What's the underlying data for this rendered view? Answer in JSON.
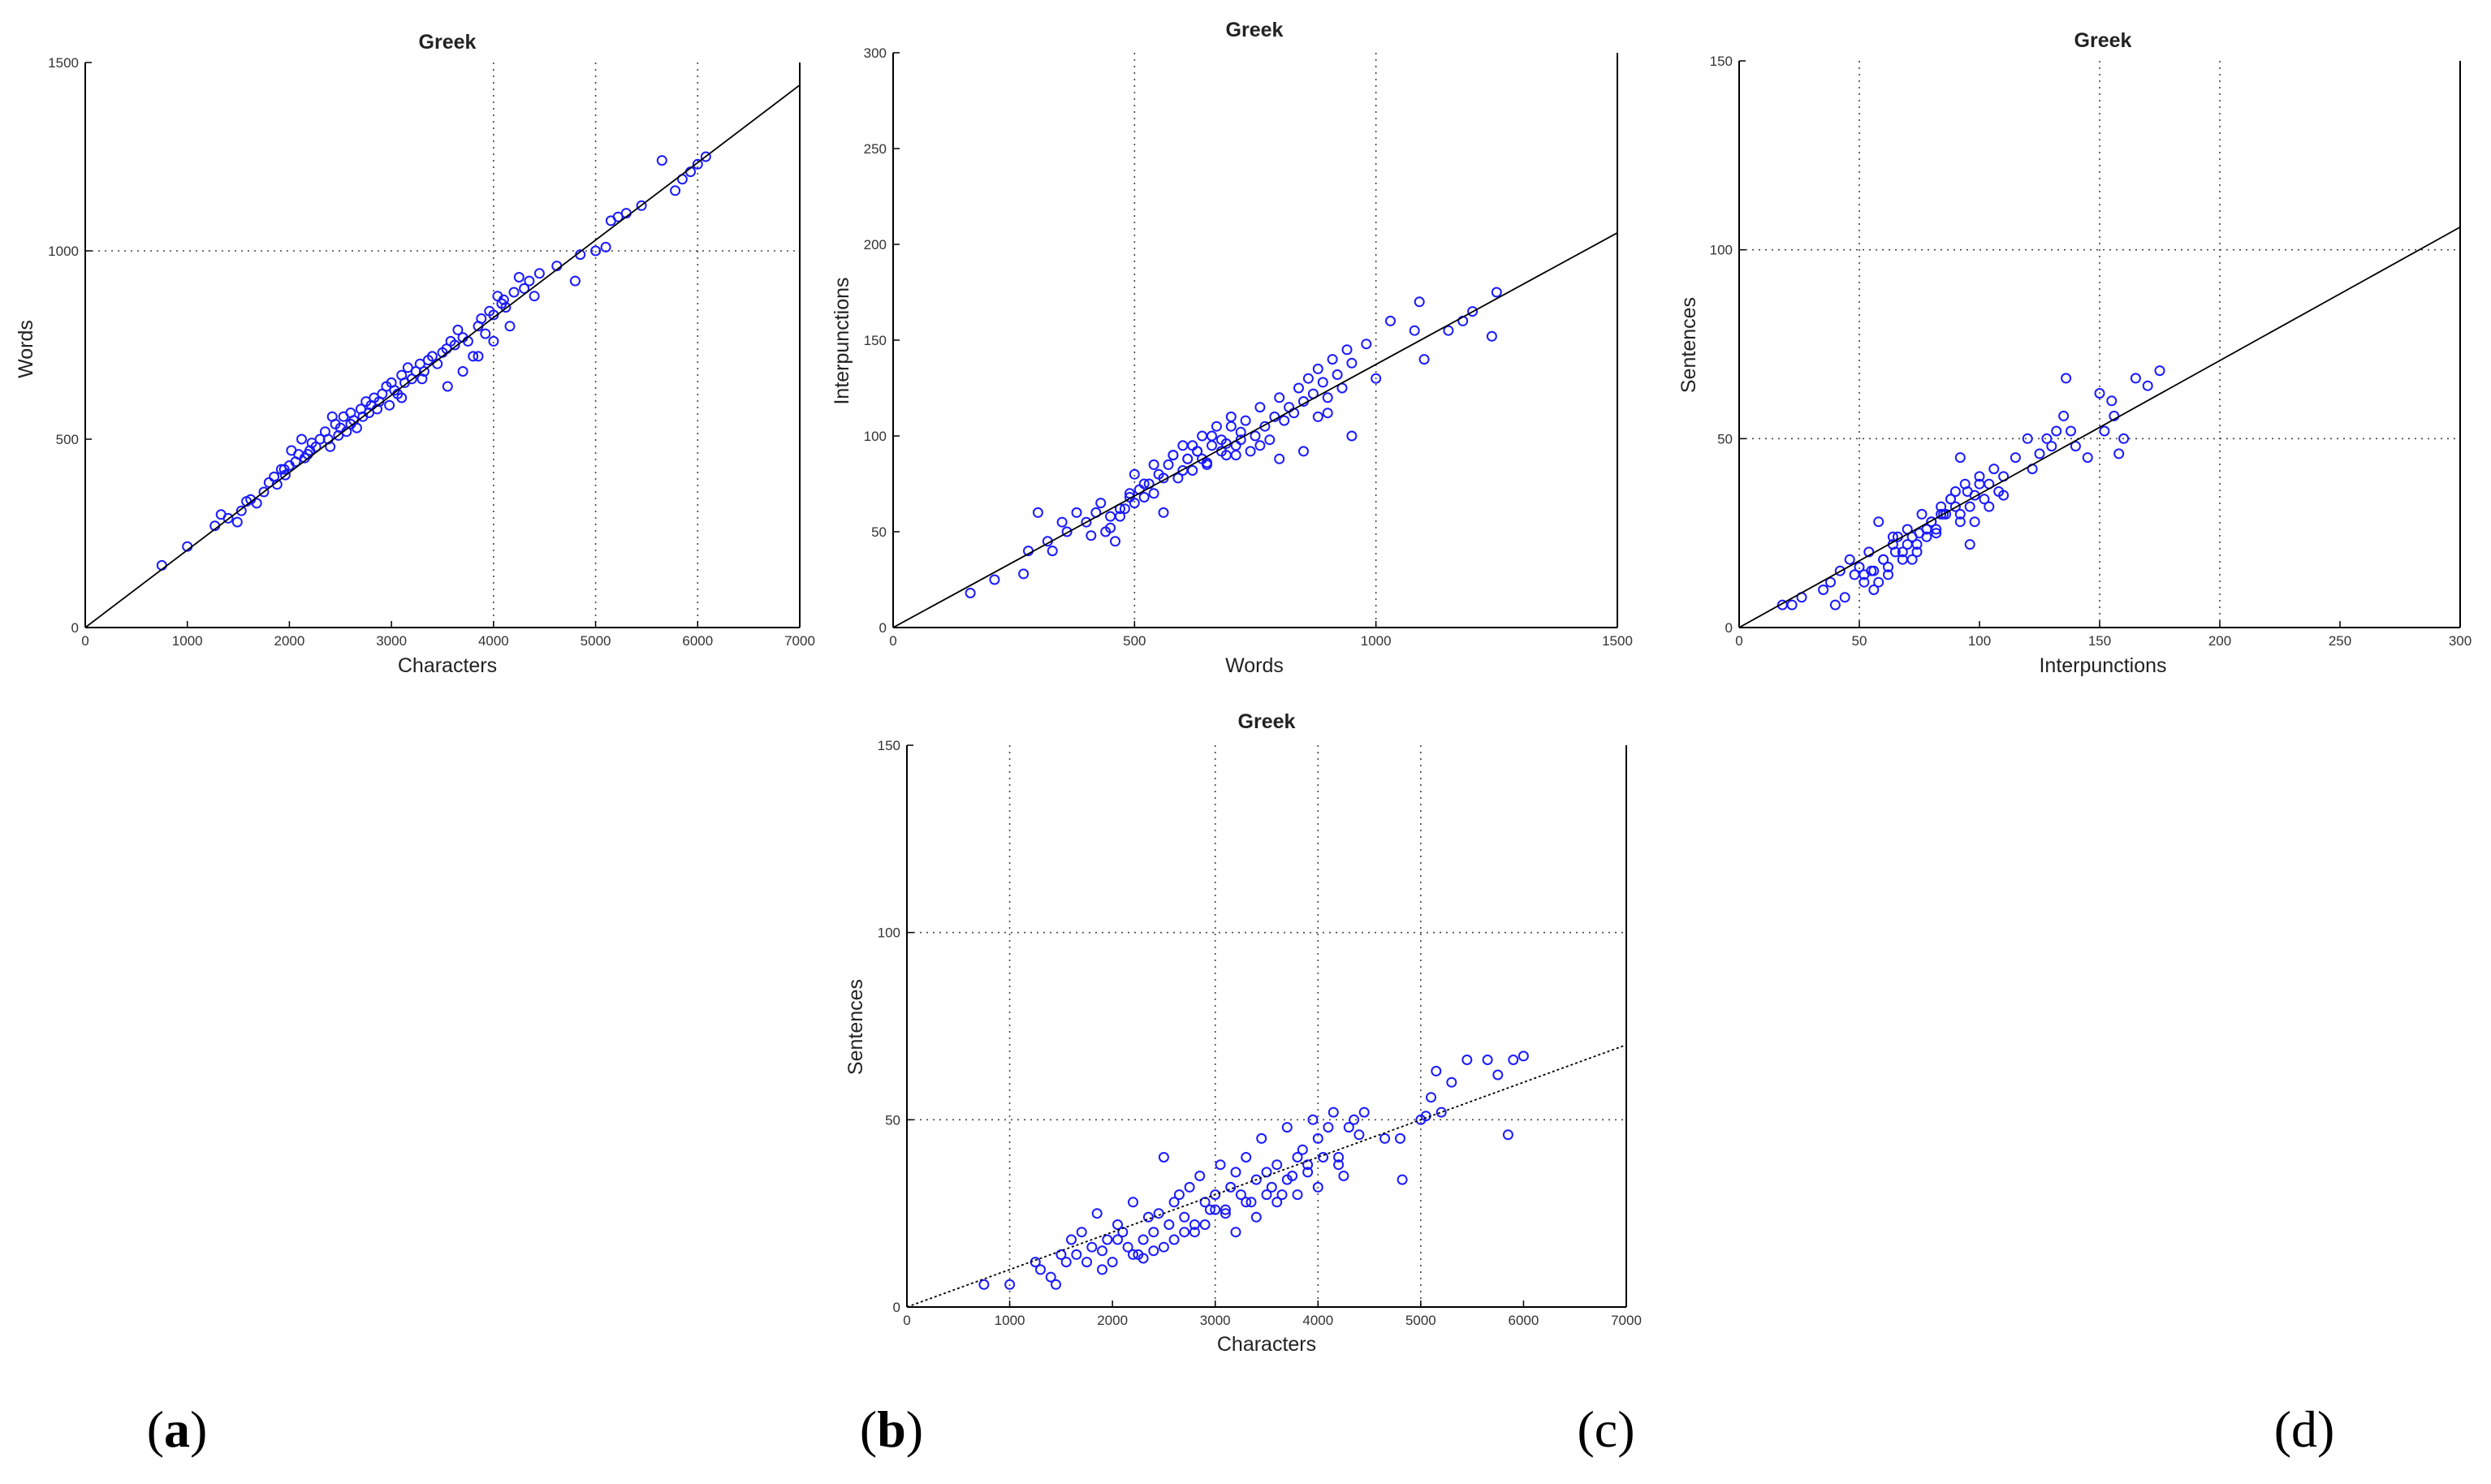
{
  "panel_labels": [
    {
      "open": "(",
      "letter": "a",
      "close": ")"
    },
    {
      "open": "(",
      "letter": "b",
      "close": ")"
    },
    {
      "open": "(",
      "letter": "c",
      "close": ")"
    },
    {
      "open": "(",
      "letter": "d",
      "close": ")"
    }
  ],
  "styles": {
    "point_color": "#1a1aff",
    "line_color": "#000000",
    "grid_color": "#444444",
    "axis_color": "#000000"
  },
  "chart_data": [
    {
      "id": "words-vs-characters",
      "type": "scatter",
      "title": "Greek",
      "xlabel": "Characters",
      "ylabel": "Words",
      "xlim": [
        0,
        7000
      ],
      "ylim": [
        0,
        1500
      ],
      "xticks": [
        0,
        1000,
        2000,
        3000,
        4000,
        5000,
        6000,
        7000
      ],
      "xtick_labels": [
        "0",
        "1000",
        "2000",
        "3000",
        "4000",
        "5000",
        "6000",
        "7000"
      ],
      "yticks": [
        0,
        500,
        1000,
        1500
      ],
      "ytick_labels": [
        "0",
        "500",
        "1000",
        "1500"
      ],
      "x_grid": [
        4000,
        5000,
        6000
      ],
      "y_grid": [
        1000
      ],
      "fit_line": {
        "x": [
          0,
          7000
        ],
        "y": [
          0,
          1440
        ]
      },
      "series": [
        {
          "x": [
            750,
            1000,
            1270,
            1330,
            1400,
            1490,
            1530,
            1580,
            1620,
            1680,
            1750,
            1800,
            1850,
            1880,
            1920,
            1960,
            2000,
            2020,
            2060,
            2090,
            2120,
            2150,
            2180,
            2220,
            2260,
            2300,
            2350,
            2380,
            2420,
            2450,
            2480,
            2500,
            2530,
            2560,
            2600,
            2630,
            2660,
            2700,
            2720,
            2750,
            2780,
            2800,
            2830,
            2860,
            2880,
            2910,
            2950,
            2980,
            3000,
            3030,
            3060,
            3100,
            3130,
            3160,
            3200,
            3240,
            3280,
            3320,
            3360,
            3400,
            3450,
            3500,
            3540,
            3580,
            3620,
            3650,
            3700,
            3750,
            3800,
            3850,
            3880,
            3920,
            3960,
            4000,
            4040,
            4080,
            4120,
            4160,
            4200,
            4250,
            4300,
            4350,
            4400,
            4450,
            4620,
            4800,
            4850,
            5000,
            5100,
            5150,
            5220,
            5300,
            5450,
            5650,
            5780,
            5850,
            5930,
            6000,
            6080,
            3550,
            3700,
            3850,
            4000,
            2400,
            2600,
            2200,
            1950,
            3100,
            3300,
            4100
          ],
          "y": [
            165,
            215,
            270,
            300,
            290,
            280,
            310,
            335,
            340,
            330,
            360,
            385,
            400,
            380,
            420,
            405,
            430,
            470,
            440,
            460,
            500,
            450,
            460,
            490,
            480,
            500,
            520,
            500,
            560,
            540,
            510,
            530,
            560,
            520,
            570,
            550,
            530,
            580,
            560,
            600,
            570,
            590,
            610,
            580,
            600,
            620,
            640,
            590,
            650,
            630,
            620,
            670,
            650,
            690,
            660,
            680,
            700,
            680,
            710,
            720,
            700,
            730,
            740,
            760,
            750,
            790,
            770,
            760,
            720,
            800,
            820,
            780,
            840,
            830,
            880,
            860,
            850,
            800,
            890,
            930,
            900,
            920,
            880,
            940,
            960,
            920,
            990,
            1000,
            1010,
            1080,
            1090,
            1100,
            1120,
            1240,
            1160,
            1190,
            1210,
            1230,
            1250,
            640,
            680,
            720,
            760,
            480,
            540,
            470,
            420,
            610,
            660,
            870
          ]
        }
      ]
    },
    {
      "id": "interpunctions-vs-words",
      "type": "scatter",
      "title": "Greek",
      "xlabel": "Words",
      "ylabel": "Interpunctions",
      "xlim": [
        0,
        1500
      ],
      "ylim": [
        0,
        300
      ],
      "xticks": [
        0,
        500,
        1000,
        1500
      ],
      "xtick_labels": [
        "0",
        "500",
        "1000",
        "1500"
      ],
      "yticks": [
        0,
        50,
        100,
        150,
        200,
        250,
        300
      ],
      "ytick_labels": [
        "0",
        "50",
        "100",
        "150",
        "200",
        "250",
        "300"
      ],
      "x_grid": [
        500,
        1000
      ],
      "y_grid": [],
      "fit_line": {
        "x": [
          0,
          1500
        ],
        "y": [
          0,
          206
        ]
      },
      "series": [
        {
          "x": [
            160,
            210,
            270,
            280,
            300,
            320,
            330,
            350,
            360,
            380,
            400,
            410,
            420,
            430,
            440,
            450,
            460,
            470,
            480,
            490,
            500,
            510,
            520,
            530,
            540,
            550,
            560,
            570,
            580,
            590,
            600,
            610,
            620,
            630,
            640,
            650,
            660,
            670,
            680,
            690,
            700,
            710,
            720,
            730,
            740,
            750,
            760,
            770,
            780,
            790,
            800,
            810,
            820,
            830,
            840,
            850,
            860,
            870,
            880,
            890,
            900,
            910,
            920,
            930,
            940,
            950,
            980,
            1000,
            1030,
            1080,
            1090,
            1100,
            1150,
            1180,
            1200,
            1240,
            1250,
            500,
            520,
            540,
            560,
            580,
            600,
            620,
            640,
            660,
            680,
            700,
            720,
            450,
            470,
            490,
            610,
            630,
            650,
            690,
            710,
            760,
            800,
            850,
            880,
            900,
            950
          ],
          "y": [
            18,
            25,
            28,
            40,
            60,
            45,
            40,
            55,
            50,
            60,
            55,
            48,
            60,
            65,
            50,
            52,
            45,
            58,
            62,
            70,
            65,
            72,
            68,
            75,
            70,
            80,
            60,
            85,
            90,
            78,
            95,
            88,
            82,
            92,
            100,
            85,
            95,
            105,
            98,
            90,
            110,
            95,
            102,
            108,
            92,
            100,
            115,
            105,
            98,
            110,
            120,
            108,
            115,
            112,
            125,
            118,
            130,
            122,
            135,
            128,
            120,
            140,
            132,
            125,
            145,
            138,
            148,
            130,
            160,
            155,
            170,
            140,
            155,
            160,
            165,
            152,
            175,
            80,
            75,
            85,
            78,
            90,
            82,
            95,
            88,
            100,
            92,
            105,
            98,
            58,
            62,
            68,
            88,
            92,
            86,
            96,
            90,
            95,
            88,
            92,
            110,
            112,
            100
          ],
          "y_fix": true
        }
      ]
    },
    {
      "id": "sentences-vs-characters",
      "type": "scatter",
      "title": "Greek",
      "xlabel": "Characters",
      "ylabel": "Sentences",
      "xlim": [
        0,
        7000
      ],
      "ylim": [
        0,
        150
      ],
      "xticks": [
        0,
        1000,
        2000,
        3000,
        4000,
        5000,
        6000,
        7000
      ],
      "xtick_labels": [
        "0",
        "1000",
        "2000",
        "3000",
        "4000",
        "5000",
        "6000",
        "7000"
      ],
      "yticks": [
        0,
        50,
        100,
        150
      ],
      "ytick_labels": [
        "0",
        "50",
        "100",
        "150"
      ],
      "x_grid": [
        1000,
        3000,
        4000,
        5000
      ],
      "y_grid": [
        50,
        100
      ],
      "fit_line": {
        "x": [
          0,
          7000
        ],
        "y": [
          0,
          70
        ]
      },
      "series": [
        {
          "x": [
            750,
            1000,
            1250,
            1300,
            1400,
            1450,
            1500,
            1550,
            1600,
            1650,
            1700,
            1750,
            1800,
            1850,
            1900,
            1950,
            2000,
            2050,
            2100,
            2150,
            2200,
            2250,
            2300,
            2350,
            2400,
            2450,
            2500,
            2550,
            2600,
            2650,
            2700,
            2750,
            2800,
            2850,
            2900,
            2950,
            3000,
            3050,
            3100,
            3150,
            3200,
            3250,
            3300,
            3350,
            3400,
            3450,
            3500,
            3550,
            3600,
            3650,
            3700,
            3750,
            3800,
            3850,
            3900,
            3950,
            4000,
            4050,
            4100,
            4150,
            4200,
            4250,
            4300,
            4350,
            4400,
            4450,
            4650,
            4800,
            4820,
            5000,
            5050,
            5100,
            5150,
            5200,
            5300,
            5450,
            5650,
            5750,
            5850,
            5900,
            6000,
            2400,
            2600,
            2800,
            3000,
            3200,
            3400,
            3600,
            3800,
            4000,
            2200,
            2500,
            2700,
            2900,
            3100,
            3300,
            3500,
            3700,
            3900,
            4200,
            2050,
            1900,
            2300
          ],
          "y": [
            6,
            6,
            12,
            10,
            8,
            6,
            14,
            12,
            18,
            14,
            20,
            12,
            16,
            25,
            15,
            18,
            12,
            22,
            20,
            16,
            28,
            14,
            18,
            24,
            20,
            25,
            40,
            22,
            28,
            30,
            24,
            32,
            20,
            35,
            28,
            26,
            30,
            38,
            25,
            32,
            36,
            30,
            40,
            28,
            34,
            45,
            36,
            32,
            38,
            30,
            48,
            35,
            40,
            42,
            38,
            50,
            45,
            40,
            48,
            52,
            38,
            35,
            48,
            50,
            46,
            52,
            45,
            45,
            34,
            50,
            51,
            56,
            63,
            52,
            60,
            66,
            66,
            62,
            46,
            66,
            67,
            15,
            18,
            22,
            26,
            20,
            24,
            28,
            30,
            32,
            14,
            16,
            20,
            22,
            26,
            28,
            30,
            34,
            36,
            40,
            18,
            10,
            13
          ]
        }
      ]
    },
    {
      "id": "sentences-vs-interpunctions",
      "type": "scatter",
      "title": "Greek",
      "xlabel": "Interpunctions",
      "ylabel": "Sentences",
      "xlim": [
        0,
        300
      ],
      "ylim": [
        0,
        150
      ],
      "xticks": [
        0,
        50,
        100,
        150,
        200,
        250,
        300
      ],
      "xtick_labels": [
        "0",
        "50",
        "100",
        "150",
        "200",
        "250",
        "300"
      ],
      "yticks": [
        0,
        50,
        100,
        150
      ],
      "ytick_labels": [
        "0",
        "50",
        "100",
        "150"
      ],
      "x_grid": [
        50,
        150,
        200
      ],
      "y_grid": [
        50,
        100
      ],
      "fit_line": {
        "x": [
          0,
          300
        ],
        "y": [
          0,
          106
        ]
      },
      "series": [
        {
          "x": [
            18,
            22,
            26,
            35,
            38,
            40,
            42,
            44,
            46,
            48,
            50,
            52,
            54,
            56,
            58,
            60,
            62,
            64,
            66,
            68,
            70,
            72,
            74,
            76,
            78,
            80,
            82,
            84,
            86,
            88,
            90,
            92,
            94,
            96,
            98,
            100,
            102,
            104,
            106,
            108,
            110,
            115,
            120,
            122,
            125,
            128,
            130,
            132,
            135,
            138,
            140,
            145,
            150,
            152,
            155,
            158,
            160,
            165,
            170,
            175,
            55,
            60,
            65,
            70,
            75,
            80,
            85,
            90,
            95,
            100,
            58,
            62,
            68,
            72,
            78,
            84,
            88,
            92,
            98,
            104,
            52,
            56,
            64,
            74,
            82,
            96,
            110,
            136,
            156,
            92
          ],
          "y": [
            6,
            6,
            8,
            10,
            12,
            6,
            15,
            8,
            18,
            14,
            16,
            12,
            20,
            15,
            28,
            18,
            14,
            22,
            24,
            20,
            26,
            18,
            22,
            30,
            24,
            28,
            25,
            32,
            30,
            34,
            36,
            28,
            38,
            32,
            35,
            40,
            34,
            38,
            42,
            36,
            40,
            45,
            50,
            42,
            46,
            50,
            48,
            52,
            56,
            52,
            48,
            45,
            62,
            52,
            60,
            46,
            50,
            66,
            64,
            68,
            15,
            18,
            20,
            22,
            25,
            28,
            30,
            32,
            36,
            38,
            12,
            16,
            18,
            24,
            26,
            30,
            34,
            30,
            28,
            32,
            14,
            10,
            24,
            20,
            26,
            22,
            35,
            66,
            56,
            45
          ]
        }
      ]
    }
  ]
}
